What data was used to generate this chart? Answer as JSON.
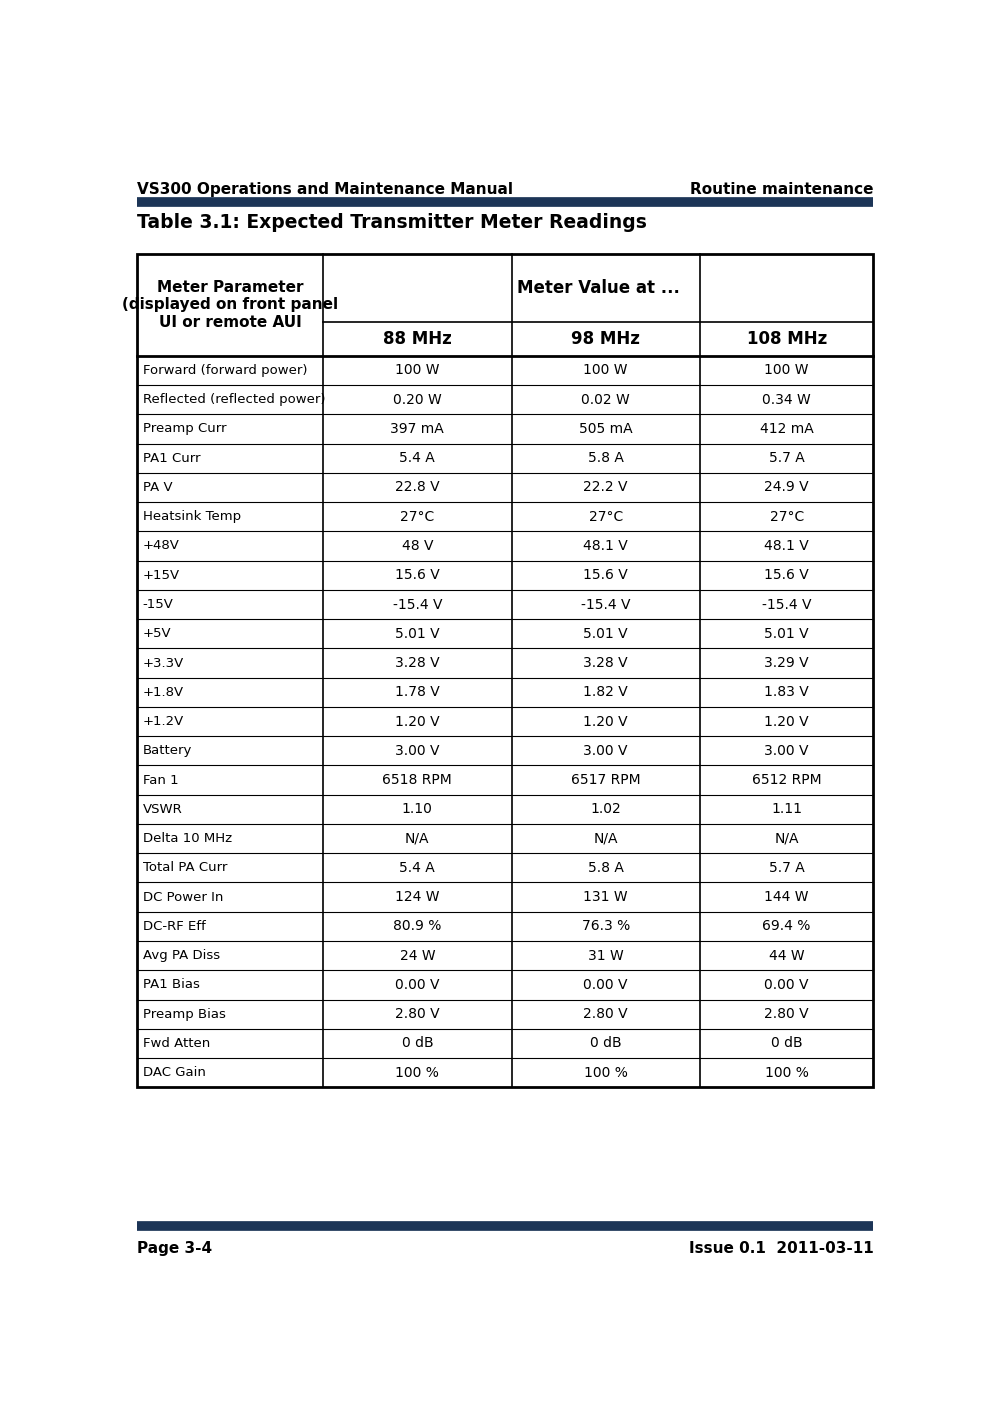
{
  "header_left": "VS300 Operations and Maintenance Manual",
  "header_right": "Routine maintenance",
  "footer_left": "Page 3-4",
  "footer_right": "Issue 0.1  2011-03-11",
  "table_title": "Table 3.1: Expected Transmitter Meter Readings",
  "sub_headers": [
    "88 MHz",
    "98 MHz",
    "108 MHz"
  ],
  "rows": [
    [
      "Forward (forward power)",
      "100 W",
      "100 W",
      "100 W"
    ],
    [
      "Reflected (reflected power)",
      "0.20 W",
      "0.02 W",
      "0.34 W"
    ],
    [
      "Preamp Curr",
      "397 mA",
      "505 mA",
      "412 mA"
    ],
    [
      "PA1 Curr",
      "5.4 A",
      "5.8 A",
      "5.7 A"
    ],
    [
      "PA V",
      "22.8 V",
      "22.2 V",
      "24.9 V"
    ],
    [
      "Heatsink Temp",
      "27°C",
      "27°C",
      "27°C"
    ],
    [
      "+48V",
      "48 V",
      "48.1 V",
      "48.1 V"
    ],
    [
      "+15V",
      "15.6 V",
      "15.6 V",
      "15.6 V"
    ],
    [
      "-15V",
      "-15.4 V",
      "-15.4 V",
      "-15.4 V"
    ],
    [
      "+5V",
      "5.01 V",
      "5.01 V",
      "5.01 V"
    ],
    [
      "+3.3V",
      "3.28 V",
      "3.28 V",
      "3.29 V"
    ],
    [
      "+1.8V",
      "1.78 V",
      "1.82 V",
      "1.83 V"
    ],
    [
      "+1.2V",
      "1.20 V",
      "1.20 V",
      "1.20 V"
    ],
    [
      "Battery",
      "3.00 V",
      "3.00 V",
      "3.00 V"
    ],
    [
      "Fan 1",
      "6518 RPM",
      "6517 RPM",
      "6512 RPM"
    ],
    [
      "VSWR",
      "1.10",
      "1.02",
      "1.11"
    ],
    [
      "Delta 10 MHz",
      "N/A",
      "N/A",
      "N/A"
    ],
    [
      "Total PA Curr",
      "5.4 A",
      "5.8 A",
      "5.7 A"
    ],
    [
      "DC Power In",
      "124 W",
      "131 W",
      "144 W"
    ],
    [
      "DC-RF Eff",
      "80.9 %",
      "76.3 %",
      "69.4 %"
    ],
    [
      "Avg PA Diss",
      "24 W",
      "31 W",
      "44 W"
    ],
    [
      "PA1 Bias",
      "0.00 V",
      "0.00 V",
      "0.00 V"
    ],
    [
      "Preamp Bias",
      "2.80 V",
      "2.80 V",
      "2.80 V"
    ],
    [
      "Fwd Atten",
      "0 dB",
      "0 dB",
      "0 dB"
    ],
    [
      "DAC Gain",
      "100 %",
      "100 %",
      "100 %"
    ]
  ],
  "dark_blue": "#1c3557",
  "bg_white": "#ffffff"
}
